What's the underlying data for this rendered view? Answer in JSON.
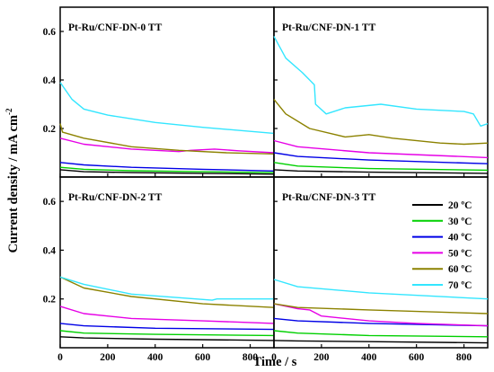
{
  "chart_data": {
    "type": "line",
    "ylabel": "Current density / mA cm",
    "ylabel_superscript": "-2",
    "xlabel": "Time / s",
    "xlim": [
      0,
      900
    ],
    "ylim": [
      0,
      0.7
    ],
    "x_ticks": [
      "0",
      "200",
      "400",
      "600",
      "800"
    ],
    "y_ticks": [
      "0.2",
      "0.4",
      "0.6"
    ],
    "legend": {
      "position": "lower-right panel, top-right",
      "entries": [
        "20 ºC",
        "30 ºC",
        "40 ºC",
        "50 ºC",
        "60 ºC",
        "70 ºC"
      ]
    },
    "series_colors": {
      "20 ºC": "#000000",
      "30 ºC": "#00d000",
      "40 ºC": "#0000e6",
      "50 ºC": "#e600e6",
      "60 ºC": "#8c8200",
      "70 ºC": "#33e6ff"
    },
    "panels": [
      {
        "title": "Pt-Ru/CNF-DN-0 TT",
        "series": [
          {
            "name": "20 ºC",
            "points": [
              [
                0,
                0.03
              ],
              [
                100,
                0.022
              ],
              [
                300,
                0.018
              ],
              [
                600,
                0.015
              ],
              [
                900,
                0.012
              ]
            ]
          },
          {
            "name": "30 ºC",
            "points": [
              [
                0,
                0.04
              ],
              [
                100,
                0.032
              ],
              [
                300,
                0.026
              ],
              [
                600,
                0.022
              ],
              [
                900,
                0.018
              ]
            ]
          },
          {
            "name": "40 ºC",
            "points": [
              [
                0,
                0.06
              ],
              [
                100,
                0.05
              ],
              [
                300,
                0.04
              ],
              [
                600,
                0.032
              ],
              [
                900,
                0.025
              ]
            ]
          },
          {
            "name": "50 ºC",
            "points": [
              [
                0,
                0.16
              ],
              [
                100,
                0.135
              ],
              [
                300,
                0.115
              ],
              [
                500,
                0.105
              ],
              [
                550,
                0.11
              ],
              [
                650,
                0.115
              ],
              [
                750,
                0.108
              ],
              [
                900,
                0.1
              ]
            ]
          },
          {
            "name": "60 ºC",
            "points": [
              [
                0,
                0.22
              ],
              [
                10,
                0.185
              ],
              [
                100,
                0.16
              ],
              [
                300,
                0.125
              ],
              [
                500,
                0.11
              ],
              [
                700,
                0.1
              ],
              [
                900,
                0.095
              ]
            ]
          },
          {
            "name": "70 ºC",
            "points": [
              [
                0,
                0.39
              ],
              [
                50,
                0.32
              ],
              [
                100,
                0.28
              ],
              [
                200,
                0.255
              ],
              [
                400,
                0.225
              ],
              [
                600,
                0.205
              ],
              [
                900,
                0.18
              ]
            ]
          }
        ]
      },
      {
        "title": "Pt-Ru/CNF-DN-1 TT",
        "series": [
          {
            "name": "20 ºC",
            "points": [
              [
                0,
                0.03
              ],
              [
                100,
                0.025
              ],
              [
                400,
                0.02
              ],
              [
                900,
                0.015
              ]
            ]
          },
          {
            "name": "30 ºC",
            "points": [
              [
                0,
                0.06
              ],
              [
                100,
                0.045
              ],
              [
                400,
                0.035
              ],
              [
                900,
                0.028
              ]
            ]
          },
          {
            "name": "40 ºC",
            "points": [
              [
                0,
                0.1
              ],
              [
                100,
                0.085
              ],
              [
                400,
                0.07
              ],
              [
                900,
                0.055
              ]
            ]
          },
          {
            "name": "50 ºC",
            "points": [
              [
                0,
                0.15
              ],
              [
                100,
                0.125
              ],
              [
                400,
                0.1
              ],
              [
                900,
                0.08
              ]
            ]
          },
          {
            "name": "60 ºC",
            "points": [
              [
                0,
                0.32
              ],
              [
                50,
                0.26
              ],
              [
                150,
                0.2
              ],
              [
                300,
                0.165
              ],
              [
                400,
                0.175
              ],
              [
                500,
                0.16
              ],
              [
                700,
                0.14
              ],
              [
                800,
                0.135
              ],
              [
                900,
                0.14
              ]
            ]
          },
          {
            "name": "70 ºC",
            "points": [
              [
                0,
                0.58
              ],
              [
                50,
                0.49
              ],
              [
                120,
                0.43
              ],
              [
                170,
                0.38
              ],
              [
                175,
                0.3
              ],
              [
                220,
                0.26
              ],
              [
                300,
                0.285
              ],
              [
                450,
                0.3
              ],
              [
                600,
                0.28
              ],
              [
                800,
                0.27
              ],
              [
                840,
                0.26
              ],
              [
                870,
                0.21
              ],
              [
                900,
                0.22
              ]
            ]
          }
        ]
      },
      {
        "title": "Pt-Ru/CNF-DN-2 TT",
        "series": [
          {
            "name": "20 ºC",
            "points": [
              [
                0,
                0.045
              ],
              [
                100,
                0.04
              ],
              [
                400,
                0.035
              ],
              [
                900,
                0.03
              ]
            ]
          },
          {
            "name": "30 ºC",
            "points": [
              [
                0,
                0.07
              ],
              [
                100,
                0.06
              ],
              [
                400,
                0.055
              ],
              [
                900,
                0.05
              ]
            ]
          },
          {
            "name": "40 ºC",
            "points": [
              [
                0,
                0.1
              ],
              [
                100,
                0.09
              ],
              [
                400,
                0.08
              ],
              [
                900,
                0.075
              ]
            ]
          },
          {
            "name": "50 ºC",
            "points": [
              [
                0,
                0.17
              ],
              [
                100,
                0.14
              ],
              [
                300,
                0.12
              ],
              [
                600,
                0.11
              ],
              [
                900,
                0.1
              ]
            ]
          },
          {
            "name": "60 ºC",
            "points": [
              [
                0,
                0.29
              ],
              [
                100,
                0.245
              ],
              [
                300,
                0.21
              ],
              [
                600,
                0.18
              ],
              [
                900,
                0.165
              ]
            ]
          },
          {
            "name": "70 ºC",
            "points": [
              [
                0,
                0.29
              ],
              [
                100,
                0.26
              ],
              [
                300,
                0.22
              ],
              [
                640,
                0.195
              ],
              [
                660,
                0.2
              ],
              [
                900,
                0.2
              ]
            ]
          }
        ]
      },
      {
        "title": "Pt-Ru/CNF-DN-3 TT",
        "series": [
          {
            "name": "20 ºC",
            "points": [
              [
                0,
                0.03
              ],
              [
                100,
                0.028
              ],
              [
                400,
                0.025
              ],
              [
                900,
                0.02
              ]
            ]
          },
          {
            "name": "30 ºC",
            "points": [
              [
                0,
                0.07
              ],
              [
                100,
                0.06
              ],
              [
                400,
                0.05
              ],
              [
                900,
                0.045
              ]
            ]
          },
          {
            "name": "40 ºC",
            "points": [
              [
                0,
                0.12
              ],
              [
                100,
                0.11
              ],
              [
                400,
                0.1
              ],
              [
                900,
                0.09
              ]
            ]
          },
          {
            "name": "50 ºC",
            "points": [
              [
                0,
                0.18
              ],
              [
                100,
                0.16
              ],
              [
                150,
                0.155
              ],
              [
                200,
                0.13
              ],
              [
                400,
                0.11
              ],
              [
                600,
                0.1
              ],
              [
                900,
                0.09
              ]
            ]
          },
          {
            "name": "60 ºC",
            "points": [
              [
                0,
                0.18
              ],
              [
                100,
                0.165
              ],
              [
                400,
                0.155
              ],
              [
                900,
                0.14
              ]
            ]
          },
          {
            "name": "70 ºC",
            "points": [
              [
                0,
                0.28
              ],
              [
                100,
                0.25
              ],
              [
                400,
                0.225
              ],
              [
                900,
                0.2
              ]
            ]
          }
        ]
      }
    ]
  }
}
